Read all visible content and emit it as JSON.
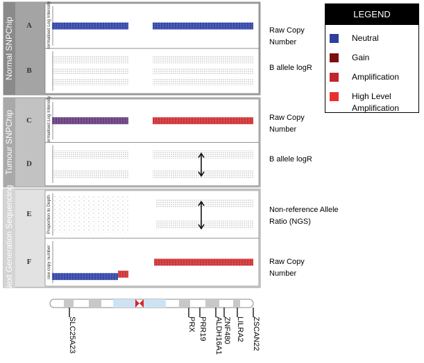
{
  "sections": [
    {
      "label": "Normal SNPChip",
      "panels": [
        {
          "letter": "A",
          "y_axis": "Normalised Log Intensity",
          "description": "Raw Copy Number"
        },
        {
          "letter": "B",
          "description": "B allele logR"
        }
      ]
    },
    {
      "label": "Tumour SNPChip",
      "panels": [
        {
          "letter": "C",
          "y_axis": "Normalised Log Intensity",
          "description": "Raw Copy Number"
        },
        {
          "letter": "D",
          "description": "B allele logR"
        }
      ]
    },
    {
      "label": "Next Generation Sequencing",
      "panels": [
        {
          "letter": "E",
          "y_axis": "Proportion to Depth",
          "description": "Non-reference Allele Ratio (NGS)"
        },
        {
          "letter": "F",
          "y_axis": "raw copy number",
          "description": "Raw Copy Number"
        }
      ]
    }
  ],
  "legend": {
    "title": "LEGEND",
    "items": [
      {
        "label": "Neutral",
        "color": "#2e3f9e"
      },
      {
        "label": "Gain",
        "color": "#7a1010"
      },
      {
        "label": "Amplification",
        "color": "#c0262d"
      },
      {
        "label": "High Level Amplification",
        "color": "#e8312f"
      }
    ]
  },
  "genes": [
    "SLC25A23",
    "PRX",
    "PRR19",
    "ALDH16A1",
    "ZNF480",
    "LILRA2",
    "ZSCAN22"
  ]
}
